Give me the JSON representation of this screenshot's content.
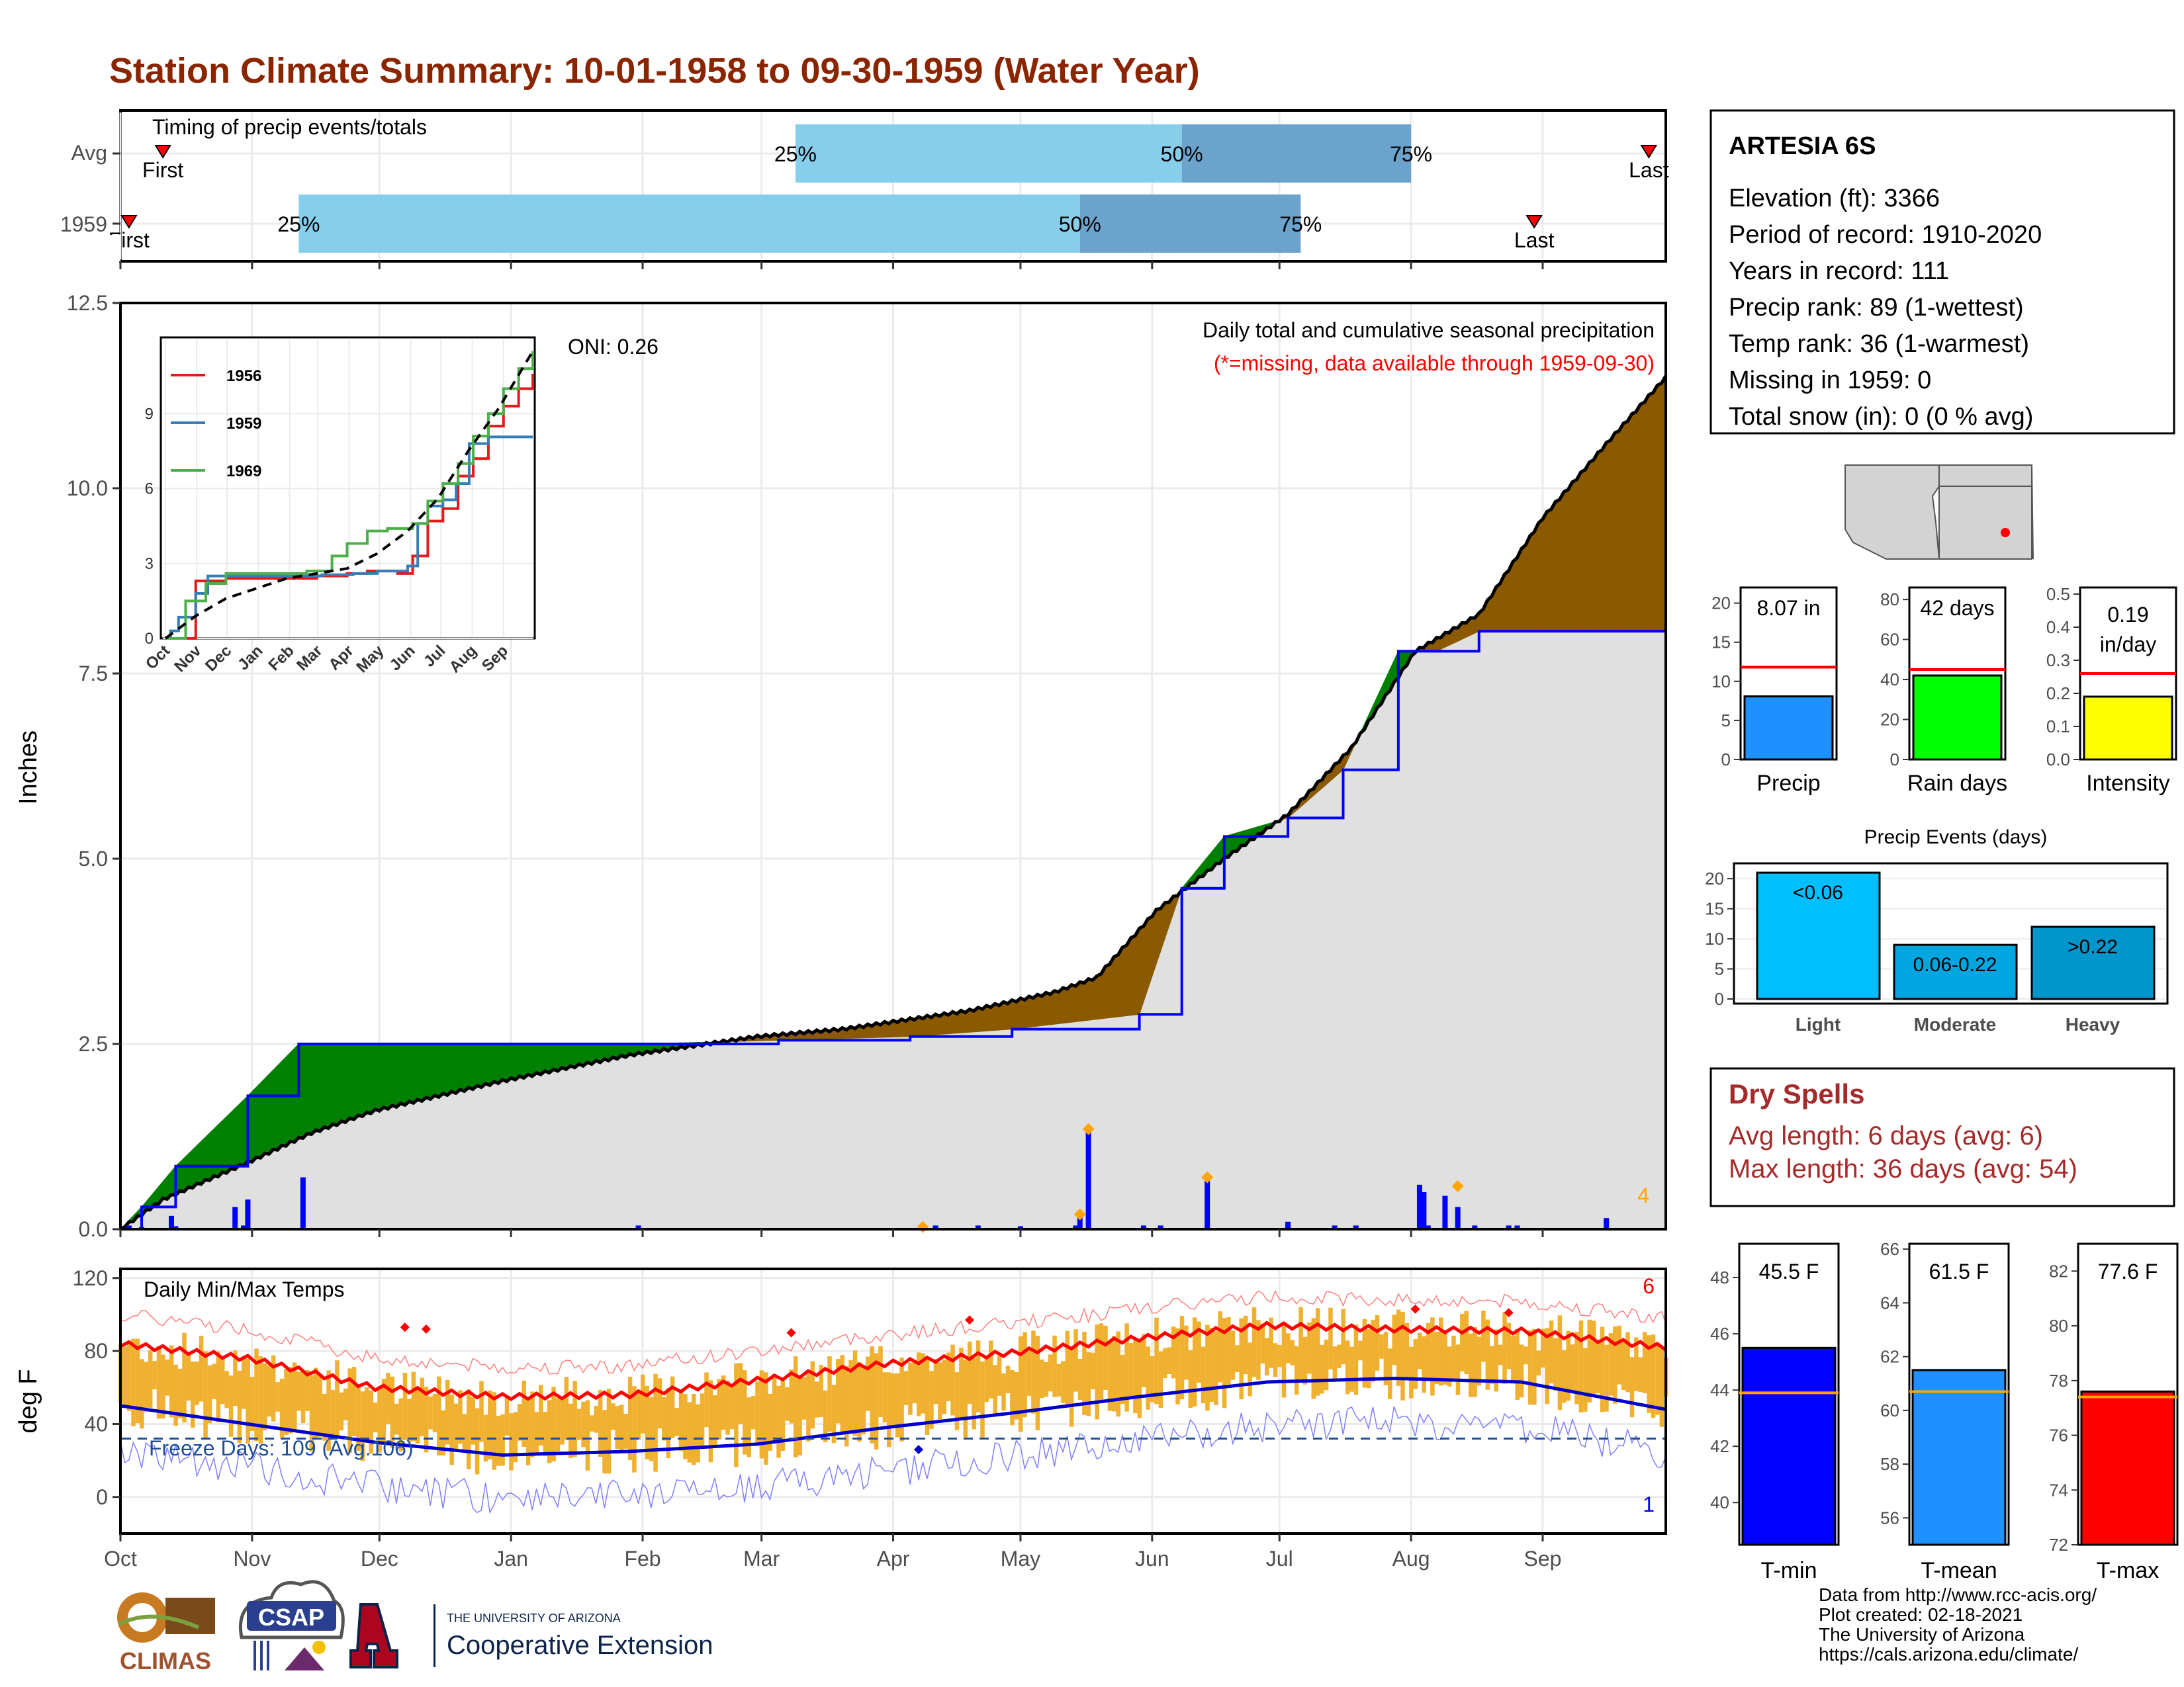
{
  "title": "Station Climate Summary: 10-01-1958 to 09-30-1959 (Water Year)",
  "colors": {
    "title": "#8b2500",
    "green": "#008000",
    "brown": "#8b5a00",
    "grey_area": "#e0e0e0",
    "blue_line": "#0000ff",
    "light_blue": "#87ceeb",
    "mid_blue": "#6ca3cc",
    "orange": "#f0b030",
    "red": "#ff0000",
    "dry_red": "#a52a2a"
  },
  "timing": {
    "heading": "Timing of precip events/totals",
    "rows": [
      {
        "label": "Avg",
        "first_label": "First",
        "last_label": "Last",
        "first_day": 10,
        "last_day": 360,
        "p25_day": 159,
        "p50_day": 250,
        "p75_day": 304
      },
      {
        "label": "1959",
        "first_label": "First",
        "last_label": "Last",
        "first_day": 2,
        "last_day": 333,
        "p25_day": 42,
        "p50_day": 226,
        "p75_day": 278
      }
    ],
    "pct_labels": [
      "25%",
      "50%",
      "75%"
    ]
  },
  "precip": {
    "ylabel": "Inches",
    "yticks": [
      "0.0",
      "2.5",
      "5.0",
      "7.5",
      "10.0",
      "12.5"
    ],
    "ymax": 12.5,
    "oni": "ONI: 0.26",
    "caption": "Daily total and cumulative seasonal precipitation",
    "missing_note": "(*=missing, data available through 1959-09-30)",
    "max_daily_label": "4"
  },
  "chart_data": [
    {
      "type": "area",
      "name": "cumulative_precip",
      "x_unit": "day of water year (0 = Oct 1)",
      "avg_cumulative": {
        "x": [
          0,
          10,
          30,
          45,
          60,
          90,
          120,
          150,
          170,
          200,
          220,
          230,
          244,
          260,
          275,
          290,
          305,
          320,
          335,
          350,
          364
        ],
        "y": [
          0,
          0.4,
          0.9,
          1.3,
          1.6,
          2.0,
          2.35,
          2.6,
          2.7,
          2.95,
          3.2,
          3.4,
          4.3,
          5.0,
          5.6,
          6.5,
          7.8,
          8.3,
          9.6,
          10.6,
          11.5
        ]
      },
      "wy1959_cumulative": {
        "x": [
          0,
          5,
          13,
          30,
          42,
          122,
          155,
          186,
          210,
          240,
          250,
          260,
          275,
          288,
          301,
          310,
          320,
          364
        ],
        "y": [
          0,
          0.3,
          0.85,
          1.8,
          2.5,
          2.5,
          2.55,
          2.6,
          2.7,
          2.9,
          4.6,
          5.3,
          5.55,
          6.2,
          7.8,
          7.8,
          8.07,
          8.07
        ]
      },
      "daily_bars": {
        "x": [
          1,
          2,
          5,
          12,
          13,
          27,
          29,
          30,
          43,
          122,
          189,
          192,
          202,
          212,
          225,
          226,
          228,
          241,
          245,
          256,
          275,
          286,
          291,
          306,
          307,
          308,
          312,
          315,
          319,
          327,
          329,
          350
        ],
        "y": [
          0.02,
          0.05,
          0.03,
          0.18,
          0.04,
          0.3,
          0.05,
          0.4,
          0.7,
          0.05,
          0.03,
          0.05,
          0.05,
          0.04,
          0.05,
          0.2,
          1.35,
          0.05,
          0.05,
          0.7,
          0.1,
          0.05,
          0.05,
          0.6,
          0.5,
          0.05,
          0.45,
          0.3,
          0.05,
          0.05,
          0.05,
          0.15
        ]
      },
      "ylim": [
        0,
        12.5
      ]
    },
    {
      "type": "line",
      "name": "inset_cumulative",
      "series": [
        {
          "name": "1956",
          "x": [
            0,
            30,
            60,
            120,
            150,
            170,
            180,
            200,
            230,
            245,
            260,
            275,
            290,
            305,
            320,
            335,
            350,
            364
          ],
          "y": [
            0,
            2.3,
            2.4,
            2.4,
            2.5,
            2.5,
            2.6,
            2.7,
            2.6,
            3.3,
            4.7,
            5.2,
            6.5,
            7.2,
            8.5,
            9.3,
            10.0,
            10.6
          ]
        },
        {
          "name": "1959",
          "x": [
            0,
            5,
            13,
            30,
            42,
            122,
            155,
            186,
            210,
            240,
            250,
            260,
            275,
            288,
            301,
            310,
            320,
            364
          ],
          "y": [
            0,
            0.3,
            0.85,
            1.8,
            2.5,
            2.5,
            2.55,
            2.6,
            2.7,
            2.9,
            4.6,
            5.3,
            5.55,
            6.2,
            7.8,
            7.8,
            8.07,
            8.07
          ]
        },
        {
          "name": "1969",
          "x": [
            0,
            20,
            40,
            60,
            90,
            120,
            140,
            165,
            180,
            200,
            220,
            245,
            260,
            275,
            290,
            305,
            320,
            335,
            350,
            364
          ],
          "y": [
            0,
            1.5,
            2.2,
            2.6,
            2.6,
            2.6,
            2.7,
            3.3,
            3.8,
            4.3,
            4.4,
            4.6,
            5.5,
            6.2,
            7.0,
            8.1,
            9.0,
            10.0,
            10.8,
            11.5
          ]
        },
        {
          "name": "avg",
          "x": [
            0,
            30,
            60,
            90,
            120,
            150,
            180,
            210,
            240,
            270,
            300,
            330,
            364
          ],
          "y": [
            0,
            0.9,
            1.6,
            2.0,
            2.4,
            2.6,
            2.8,
            3.4,
            4.3,
            5.6,
            7.5,
            9.2,
            11.5
          ]
        }
      ],
      "yticks": [
        "0",
        "3",
        "6",
        "9"
      ],
      "xticks": [
        "Oct",
        "Nov",
        "Dec",
        "Jan",
        "Feb",
        "Mar",
        "Apr",
        "May",
        "Jun",
        "Jul",
        "Aug",
        "Sep"
      ],
      "ylim": [
        0,
        12
      ]
    },
    {
      "type": "bar",
      "name": "daily_temps",
      "title": "Daily Min/Max Temps",
      "ylabel": "deg F",
      "yticks": [
        "0",
        "40",
        "80",
        "120"
      ],
      "ylim": [
        -20,
        125
      ],
      "avg_max_curve": {
        "x": [
          0,
          30,
          60,
          90,
          120,
          150,
          180,
          210,
          240,
          270,
          300,
          330,
          364
        ],
        "y": [
          84,
          76,
          60,
          55,
          56,
          64,
          73,
          79,
          87,
          94,
          92,
          91,
          82
        ]
      },
      "avg_min_curve": {
        "x": [
          0,
          30,
          60,
          90,
          120,
          150,
          180,
          210,
          240,
          270,
          300,
          330,
          364
        ],
        "y": [
          50,
          40,
          30,
          23,
          25,
          29,
          38,
          46,
          55,
          63,
          65,
          63,
          48
        ]
      },
      "freeze_line": 32,
      "freeze_label": "Freeze Days: 109 (Avg.106)",
      "count_top": "6",
      "count_bottom": "1"
    }
  ],
  "months": [
    "Oct",
    "Nov",
    "Dec",
    "Jan",
    "Feb",
    "Mar",
    "Apr",
    "May",
    "Jun",
    "Jul",
    "Aug",
    "Sep"
  ],
  "station": {
    "name": "ARTESIA 6S",
    "lines": [
      "Elevation (ft): 3366",
      "Period of record: 1910-2020",
      "Years in record: 111",
      "Precip rank: 89 (1-wettest)",
      "Temp rank: 36 (1-warmest)",
      "Missing in 1959: 0",
      "Total snow (in): 0 (0 % avg)"
    ]
  },
  "mini_bars": [
    {
      "label": "Precip",
      "value_label": "8.07 in",
      "value": 8.07,
      "avg": 11.8,
      "max": 22,
      "yticks": [
        "0",
        "5",
        "10",
        "15",
        "20"
      ],
      "color": "#1e90ff"
    },
    {
      "label": "Rain days",
      "value_label": "42 days",
      "value": 42,
      "avg": 45,
      "max": 86,
      "yticks": [
        "0",
        "20",
        "40",
        "60",
        "80"
      ],
      "color": "#00ff00"
    },
    {
      "label": "Intensity",
      "value_label": "0.19 in/day",
      "value": 0.19,
      "avg": 0.26,
      "max": 0.52,
      "yticks": [
        "0.0",
        "0.1",
        "0.2",
        "0.3",
        "0.4",
        "0.5"
      ],
      "color": "#ffff00"
    }
  ],
  "precip_events": {
    "title": "Precip Events (days)",
    "yticks": [
      "0",
      "5",
      "10",
      "15",
      "20"
    ],
    "max": 22,
    "bars": [
      {
        "label": "Light",
        "value_label": "<0.06",
        "value": 21,
        "color": "#00bfff"
      },
      {
        "label": "Moderate",
        "value_label": "0.06-0.22",
        "value": 9,
        "color": "#00a6e0"
      },
      {
        "label": "Heavy",
        "value_label": ">0.22",
        "value": 12,
        "color": "#0096cc"
      }
    ]
  },
  "dry_spells": {
    "title": "Dry Spells",
    "avg_line": "Avg length: 6 days (avg: 6)",
    "max_line": "Max length: 36 days (avg: 54)"
  },
  "temp_bars": [
    {
      "label": "T-min",
      "value_label": "45.5 F",
      "value": 45.5,
      "avg": 43.9,
      "min": 38.5,
      "max": 49.2,
      "yticks": [
        "40",
        "42",
        "44",
        "46",
        "48"
      ],
      "color": "#0000ff"
    },
    {
      "label": "T-mean",
      "value_label": "61.5 F",
      "value": 61.5,
      "avg": 60.7,
      "min": 55.0,
      "max": 66.2,
      "yticks": [
        "56",
        "58",
        "60",
        "62",
        "64",
        "66"
      ],
      "color": "#1e90ff"
    },
    {
      "label": "T-max",
      "value_label": "77.6 F",
      "value": 77.6,
      "avg": 77.4,
      "min": 72.0,
      "max": 83.0,
      "yticks": [
        "72",
        "74",
        "76",
        "78",
        "80",
        "82"
      ],
      "color": "#ff0000"
    }
  ],
  "credits": [
    "Data from http://www.rcc-acis.org/",
    "Plot created: 02-18-2021",
    "The University of Arizona",
    "https://cals.arizona.edu/climate/"
  ],
  "logos": {
    "climas": "CLIMAS",
    "csap": "CSAP",
    "ua_line1": "THE UNIVERSITY OF ARIZONA",
    "ua_line2": "Cooperative Extension"
  }
}
